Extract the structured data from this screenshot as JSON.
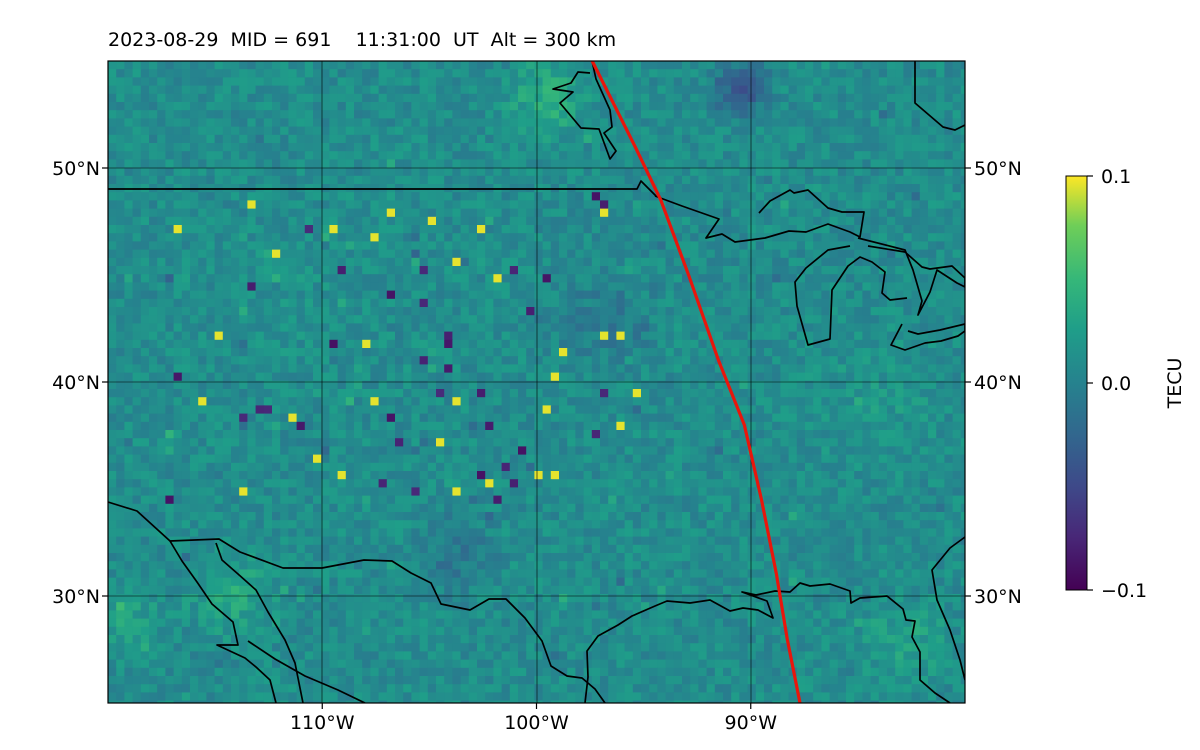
{
  "title": {
    "date": "2023-08-29",
    "mid_label": "MID = 691",
    "time_label": "11:31:00  UT",
    "alt_label": "Alt = 300 km"
  },
  "map": {
    "projection": "plate-carree",
    "lon_range": [
      -120,
      -80
    ],
    "lat_range": [
      25,
      55
    ],
    "gridlines": true,
    "field": "TEC perturbation",
    "colormap": "viridis",
    "x_ticks": [
      {
        "value": -110,
        "label": "110°W"
      },
      {
        "value": -100,
        "label": "100°W"
      },
      {
        "value": -90,
        "label": "90°W"
      }
    ],
    "y_ticks": [
      {
        "value": 50,
        "label": "50°N"
      },
      {
        "value": 40,
        "label": "40°N"
      },
      {
        "value": 30,
        "label": "30°N"
      }
    ],
    "terminator_color": "#e8160c",
    "terminator_path": [
      [
        -97.4,
        55
      ],
      [
        -95.4,
        51
      ],
      [
        -94.2,
        48.5
      ],
      [
        -92.9,
        45
      ],
      [
        -91.5,
        41
      ],
      [
        -90.3,
        38
      ],
      [
        -89.5,
        34.5
      ],
      [
        -88.8,
        31
      ],
      [
        -88.3,
        28
      ],
      [
        -87.7,
        25
      ]
    ]
  },
  "colorbar": {
    "label": "TECU",
    "min": -0.1,
    "max": 0.1,
    "ticks": [
      {
        "value": 0.1,
        "label": "0.1"
      },
      {
        "value": 0.0,
        "label": "0.0"
      },
      {
        "value": -0.1,
        "label": "−0.1"
      }
    ]
  }
}
